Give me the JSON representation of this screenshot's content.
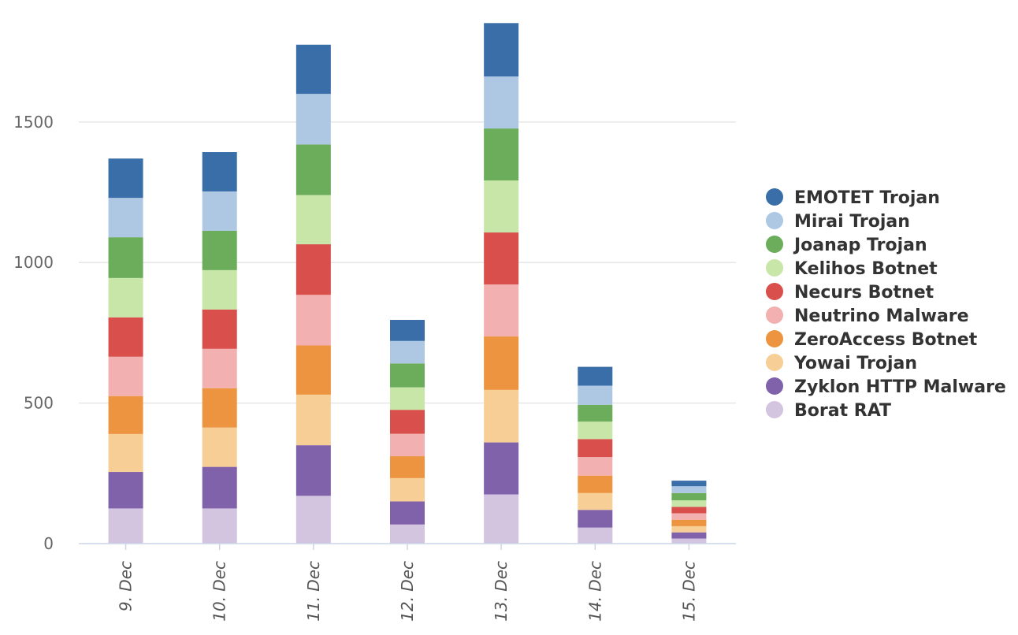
{
  "chart_data": {
    "type": "bar",
    "stacked": true,
    "categories": [
      "9. Dec",
      "10. Dec",
      "11. Dec",
      "12. Dec",
      "13. Dec",
      "14. Dec",
      "15. Dec"
    ],
    "ylim": [
      0,
      1850
    ],
    "yticks": [
      0,
      500,
      1000,
      1500
    ],
    "ytick_labels": [
      "0",
      "500",
      "1000",
      "1500"
    ],
    "grid": true,
    "legend_position": "right",
    "series": [
      {
        "name": "Borat RAT",
        "color": "#d3c4e0",
        "values": [
          125,
          125,
          170,
          68,
          175,
          57,
          18
        ]
      },
      {
        "name": "Zyklon HTTP Malware",
        "color": "#8062ab",
        "values": [
          130,
          148,
          180,
          82,
          185,
          63,
          22
        ]
      },
      {
        "name": "Yowai Trojan",
        "color": "#f6ce96",
        "values": [
          135,
          140,
          180,
          83,
          187,
          60,
          22
        ]
      },
      {
        "name": "ZeroAccess Botnet",
        "color": "#ec943f",
        "values": [
          135,
          140,
          175,
          78,
          190,
          62,
          23
        ]
      },
      {
        "name": "Neutrino Malware",
        "color": "#f2b1b0",
        "values": [
          140,
          140,
          180,
          80,
          185,
          66,
          23
        ]
      },
      {
        "name": "Necurs Botnet",
        "color": "#d84f4b",
        "values": [
          140,
          140,
          180,
          85,
          185,
          64,
          23
        ]
      },
      {
        "name": "Kelihos Botnet",
        "color": "#c8e6a8",
        "values": [
          140,
          140,
          175,
          80,
          185,
          62,
          23
        ]
      },
      {
        "name": "Joanap Trojan",
        "color": "#6bad5a",
        "values": [
          145,
          140,
          180,
          85,
          185,
          60,
          26
        ]
      },
      {
        "name": "Mirai Trojan",
        "color": "#aec8e4",
        "values": [
          140,
          140,
          180,
          80,
          185,
          68,
          24
        ]
      },
      {
        "name": "EMOTET Trojan",
        "color": "#3a6ea9",
        "values": [
          140,
          140,
          175,
          75,
          190,
          67,
          20
        ]
      }
    ]
  }
}
